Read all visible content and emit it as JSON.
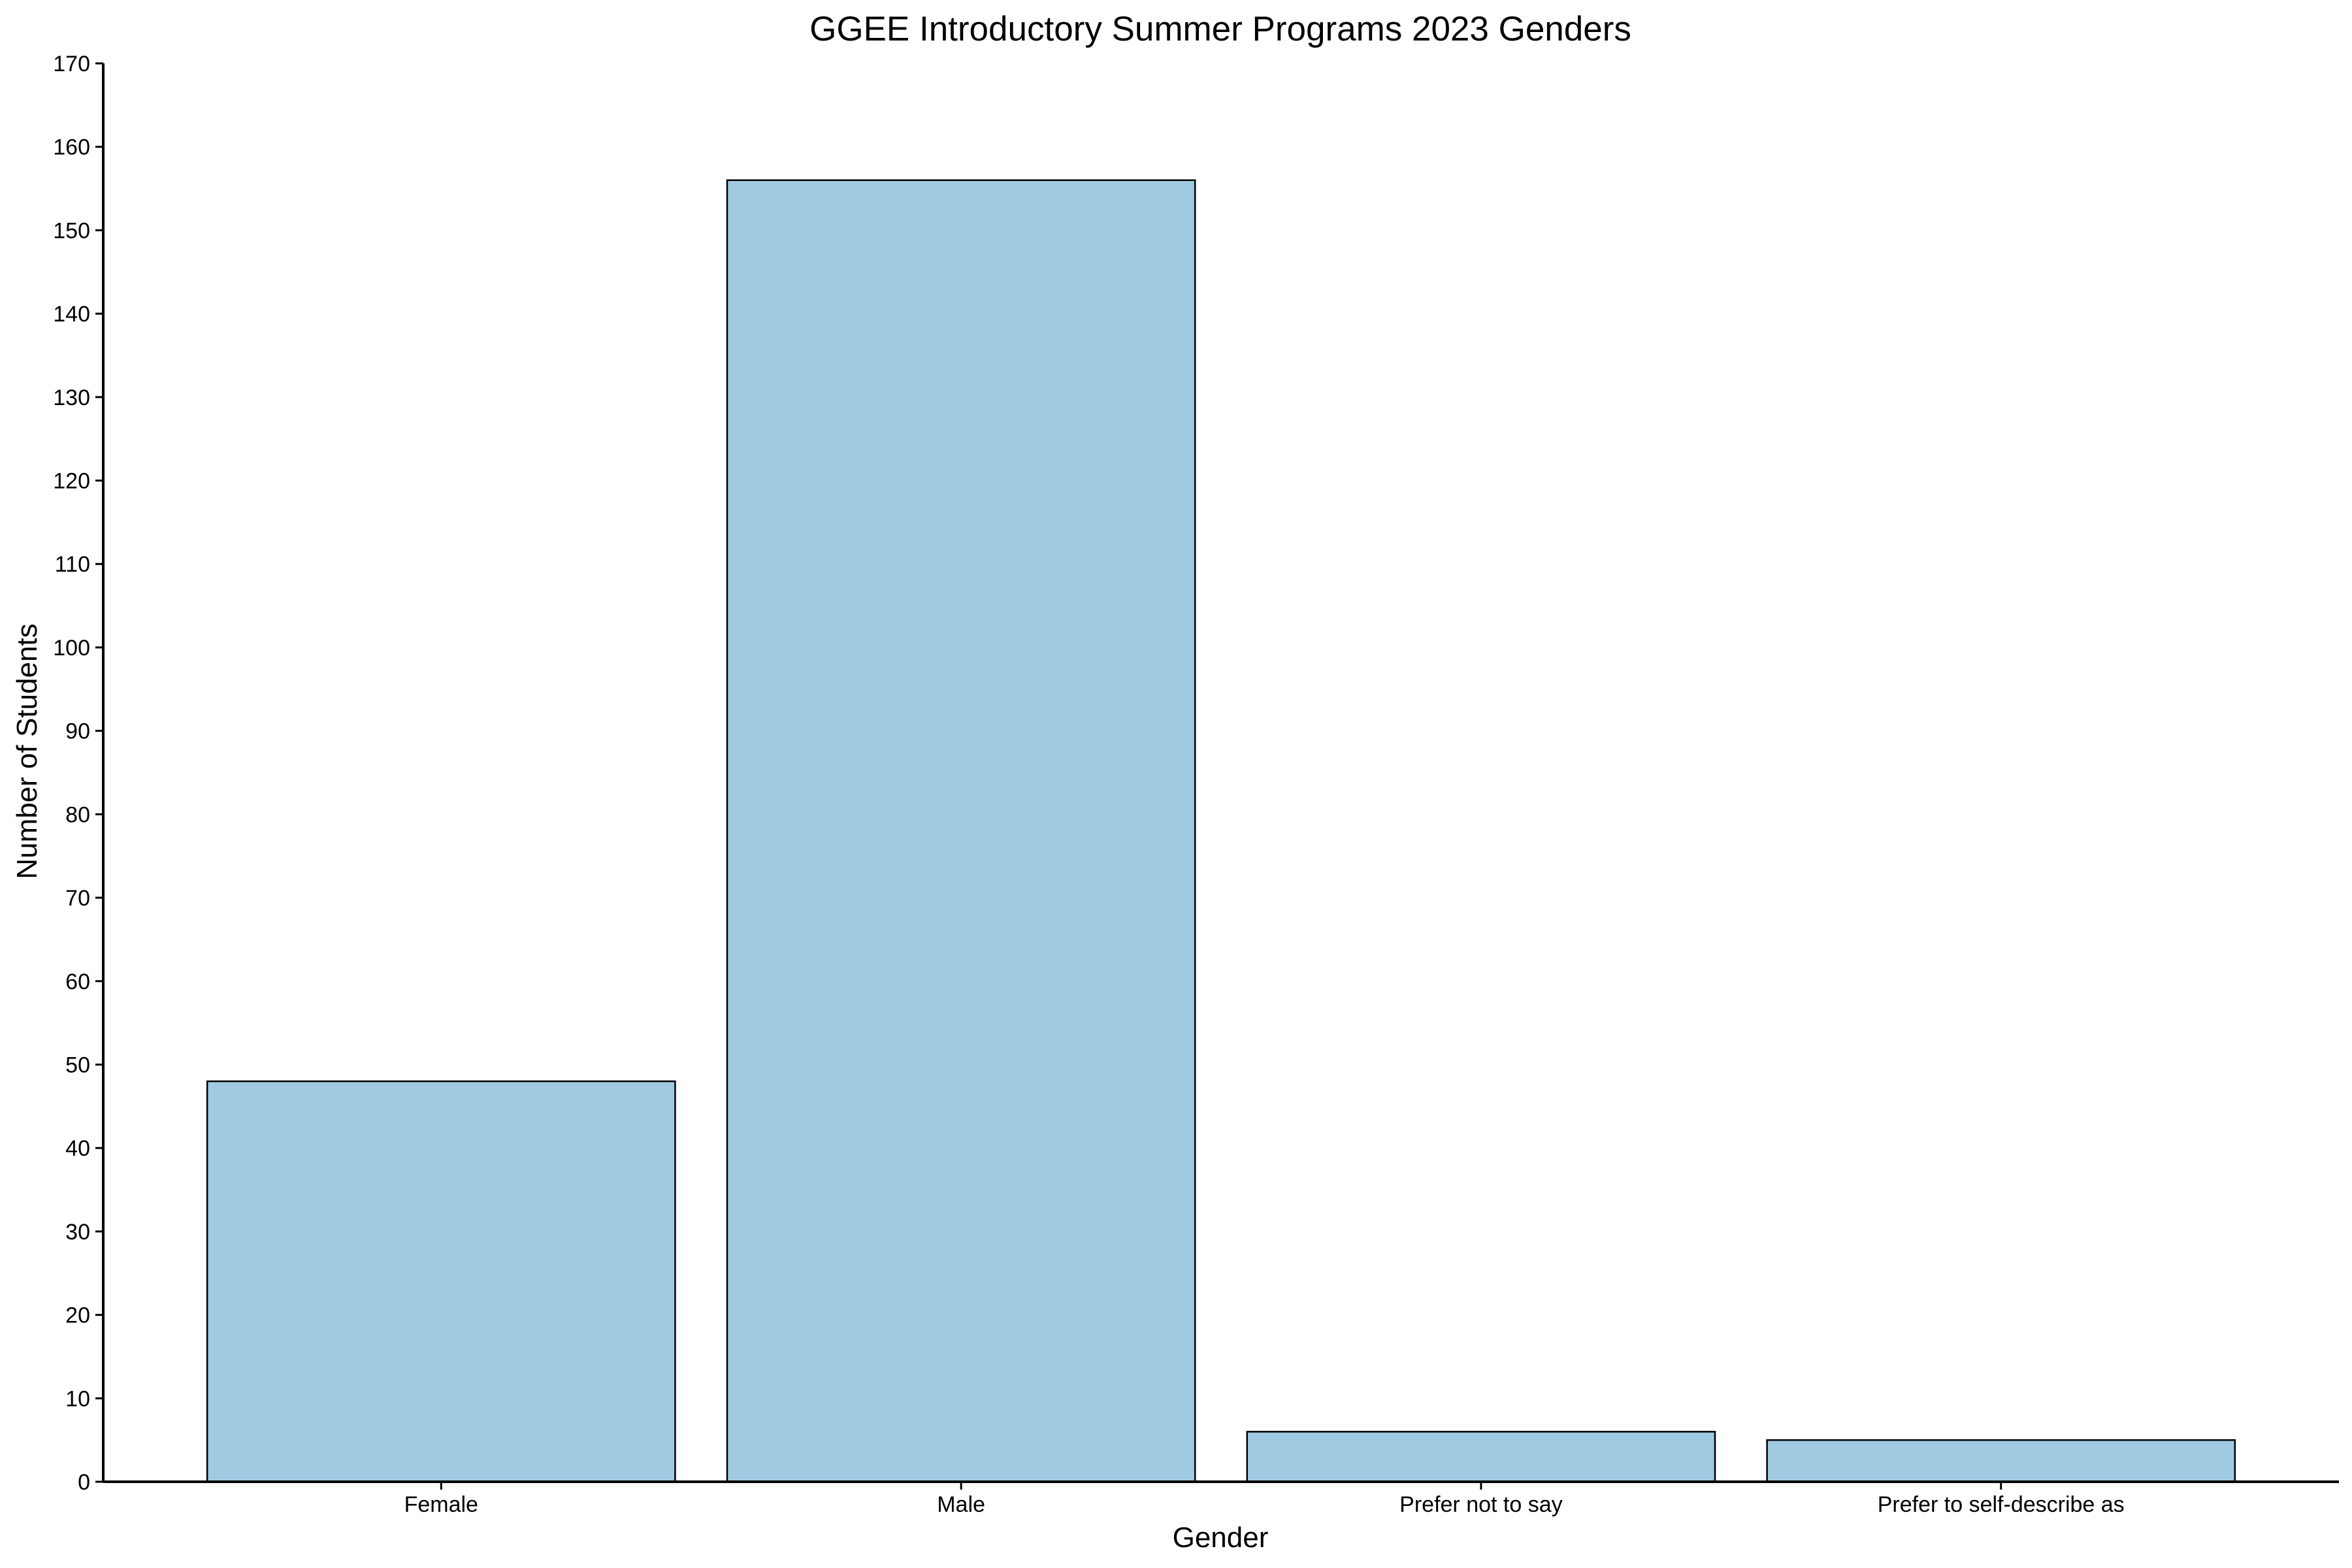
{
  "chart_data": {
    "type": "bar",
    "title": "GGEE Introductory Summer Programs 2023 Genders",
    "xlabel": "Gender",
    "ylabel": "Number of Students",
    "categories": [
      "Female",
      "Male",
      "Prefer not to say",
      "Prefer to self-describe as"
    ],
    "values": [
      48,
      156,
      6,
      5
    ],
    "ylim": [
      0,
      170
    ],
    "yticks": [
      0,
      10,
      20,
      30,
      40,
      50,
      60,
      70,
      80,
      90,
      100,
      110,
      120,
      130,
      140,
      150,
      160,
      170
    ],
    "grid": false,
    "legend": "none",
    "bar_color": "#9fcae1",
    "edge_color": "#000000"
  }
}
